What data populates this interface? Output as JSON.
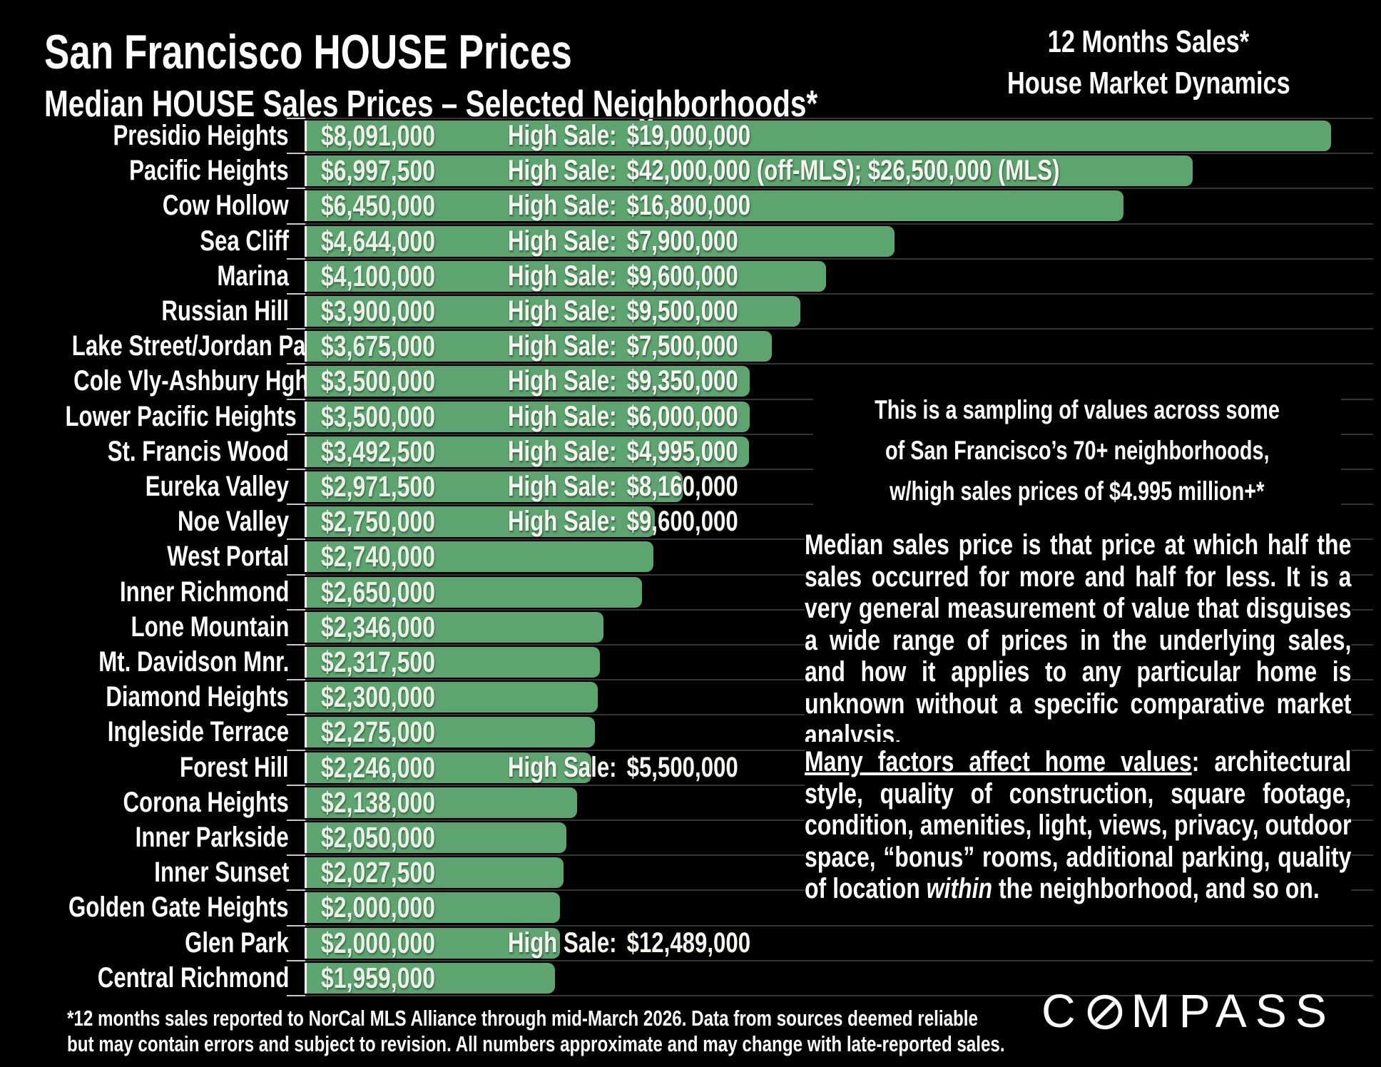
{
  "header": {
    "title": "San Francisco HOUSE Prices",
    "subtitle": "Median HOUSE Sales Prices – Selected Neighborhoods*",
    "right_line1": "12 Months Sales*",
    "right_line2": "House Market Dynamics"
  },
  "chart_data": {
    "type": "bar",
    "orientation": "horizontal",
    "title": "Median HOUSE Sales Prices – Selected Neighborhoods",
    "value_axis": "Median sales price (USD)",
    "max_value": 8091000,
    "bar_color": "#5da470",
    "high_sale_label": "High Sale:",
    "rows": [
      {
        "neighborhood": "Presidio Heights",
        "median": 8091000,
        "median_label": "$8,091,000",
        "high_sale": "$19,000,000"
      },
      {
        "neighborhood": "Pacific Heights",
        "median": 6997500,
        "median_label": "$6,997,500",
        "high_sale": "$42,000,000 (off-MLS); $26,500,000 (MLS)"
      },
      {
        "neighborhood": "Cow Hollow",
        "median": 6450000,
        "median_label": "$6,450,000",
        "high_sale": "$16,800,000"
      },
      {
        "neighborhood": "Sea Cliff",
        "median": 4644000,
        "median_label": "$4,644,000",
        "high_sale": "$7,900,000"
      },
      {
        "neighborhood": "Marina",
        "median": 4100000,
        "median_label": "$4,100,000",
        "high_sale": "$9,600,000"
      },
      {
        "neighborhood": "Russian Hill",
        "median": 3900000,
        "median_label": "$3,900,000",
        "high_sale": "$9,500,000"
      },
      {
        "neighborhood": "Lake Street/Jordan Park",
        "median": 3675000,
        "median_label": "$3,675,000",
        "high_sale": "$7,500,000"
      },
      {
        "neighborhood": "Cole Vly-Ashbury Hghts.",
        "median": 3500000,
        "median_label": "$3,500,000",
        "high_sale": "$9,350,000"
      },
      {
        "neighborhood": "Lower Pacific Heights",
        "median": 3500000,
        "median_label": "$3,500,000",
        "high_sale": "$6,000,000"
      },
      {
        "neighborhood": "St. Francis Wood",
        "median": 3492500,
        "median_label": "$3,492,500",
        "high_sale": "$4,995,000"
      },
      {
        "neighborhood": "Eureka Valley",
        "median": 2971500,
        "median_label": "$2,971,500",
        "high_sale": "$8,160,000"
      },
      {
        "neighborhood": "Noe Valley",
        "median": 2750000,
        "median_label": "$2,750,000",
        "high_sale": "$9,600,000"
      },
      {
        "neighborhood": "West Portal",
        "median": 2740000,
        "median_label": "$2,740,000",
        "high_sale": null
      },
      {
        "neighborhood": "Inner Richmond",
        "median": 2650000,
        "median_label": "$2,650,000",
        "high_sale": null
      },
      {
        "neighborhood": "Lone Mountain",
        "median": 2346000,
        "median_label": "$2,346,000",
        "high_sale": null
      },
      {
        "neighborhood": "Mt. Davidson Mnr.",
        "median": 2317500,
        "median_label": "$2,317,500",
        "high_sale": null
      },
      {
        "neighborhood": "Diamond Heights",
        "median": 2300000,
        "median_label": "$2,300,000",
        "high_sale": null
      },
      {
        "neighborhood": "Ingleside Terrace",
        "median": 2275000,
        "median_label": "$2,275,000",
        "high_sale": null
      },
      {
        "neighborhood": "Forest Hill",
        "median": 2246000,
        "median_label": "$2,246,000",
        "high_sale": "$5,500,000"
      },
      {
        "neighborhood": "Corona Heights",
        "median": 2138000,
        "median_label": "$2,138,000",
        "high_sale": null
      },
      {
        "neighborhood": "Inner Parkside",
        "median": 2050000,
        "median_label": "$2,050,000",
        "high_sale": null
      },
      {
        "neighborhood": "Inner Sunset",
        "median": 2027500,
        "median_label": "$2,027,500",
        "high_sale": null
      },
      {
        "neighborhood": "Golden Gate Heights",
        "median": 2000000,
        "median_label": "$2,000,000",
        "high_sale": null
      },
      {
        "neighborhood": "Glen Park",
        "median": 2000000,
        "median_label": "$2,000,000",
        "high_sale": "$12,489,000"
      },
      {
        "neighborhood": "Central Richmond",
        "median": 1959000,
        "median_label": "$1,959,000",
        "high_sale": null
      }
    ]
  },
  "annotations": {
    "sampling": [
      "This is a sampling of values across some",
      "of San Francisco’s 70+ neighborhoods,",
      "w/high sales prices of $4.995 million+*"
    ],
    "paragraph1": "Median sales price is that price at which half the sales occurred for more and half for less. It is a very general measurement of value that disguises a wide range of prices in the underlying sales, and how it applies to any particular home is unknown without a specific comparative market analysis.",
    "paragraph2_underlined": "Many factors affect home values",
    "paragraph2_mid": ": architectural style, quality of construction, square footage, condition, amenities, light, views, privacy, outdoor space, “bonus” rooms, additional parking, quality of location ",
    "paragraph2_italic": "within",
    "paragraph2_end": " the neighborhood, and so on."
  },
  "footnote": [
    "*12 months sales reported to NorCal MLS Alliance through mid-March 2026. Data from sources deemed reliable",
    "but may contain errors and subject to revision. All numbers approximate and may change with late-reported sales."
  ],
  "logo": {
    "part1": "C",
    "part2": "MPASS"
  },
  "colors": {
    "background": "#000000",
    "bar_green": "#5da470",
    "gridline": "#343434",
    "text": "#ffffff"
  }
}
